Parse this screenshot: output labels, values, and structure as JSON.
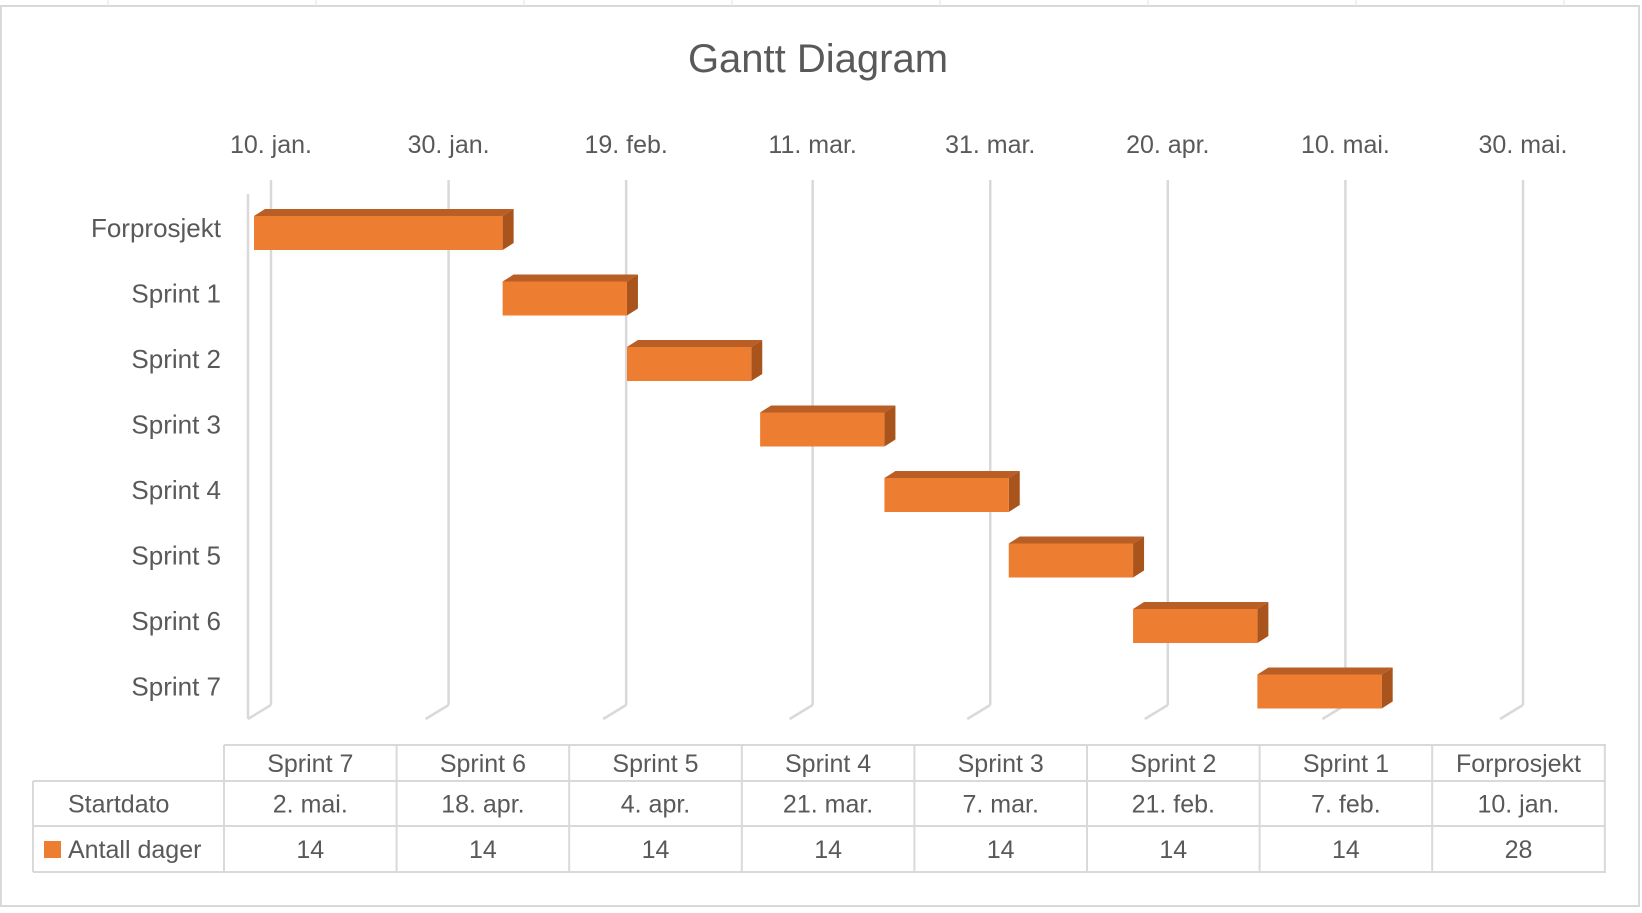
{
  "chart_data": {
    "type": "gantt",
    "title": "Gantt Diagram",
    "x_axis": {
      "position": "top",
      "tick_labels": [
        "10. jan.",
        "30. jan.",
        "19. feb.",
        "11. mar.",
        "31. mar.",
        "20. apr.",
        "10. mai.",
        "30. mai."
      ],
      "tick_dates": [
        "2024-01-10",
        "2024-01-30",
        "2024-02-19",
        "2024-03-11",
        "2024-03-31",
        "2024-04-20",
        "2024-05-10",
        "2024-05-30"
      ],
      "range": [
        "2024-01-10",
        "2024-05-30"
      ],
      "grid": true
    },
    "categories": [
      "Forprosjekt",
      "Sprint 1",
      "Sprint 2",
      "Sprint 3",
      "Sprint 4",
      "Sprint 5",
      "Sprint 6",
      "Sprint 7"
    ],
    "series": [
      {
        "name": "Antall dager",
        "color": "#ED7D31",
        "start": [
          "2024-01-10",
          "2024-02-07",
          "2024-02-21",
          "2024-03-07",
          "2024-03-21",
          "2024-04-04",
          "2024-04-18",
          "2024-05-02"
        ],
        "values": [
          28,
          14,
          14,
          14,
          14,
          14,
          14,
          14
        ]
      }
    ],
    "data_table": {
      "columns": [
        "Sprint 7",
        "Sprint 6",
        "Sprint 5",
        "Sprint 4",
        "Sprint 3",
        "Sprint 2",
        "Sprint 1",
        "Forprosjekt"
      ],
      "rows": [
        {
          "label": "Startdato",
          "cells": [
            "2. mai.",
            "18. apr.",
            "4. apr.",
            "21. mar.",
            "7. mar.",
            "21. feb.",
            "7. feb.",
            "10. jan."
          ]
        },
        {
          "label": "Antall dager",
          "legend_color": "#ED7D31",
          "cells": [
            "14",
            "14",
            "14",
            "14",
            "14",
            "14",
            "14",
            "28"
          ]
        }
      ]
    }
  },
  "colors": {
    "bar_front": "#ED7D31",
    "bar_top": "#B95E24",
    "bar_side": "#A9541D",
    "grid": "#D9D9D9",
    "text": "#595959"
  }
}
